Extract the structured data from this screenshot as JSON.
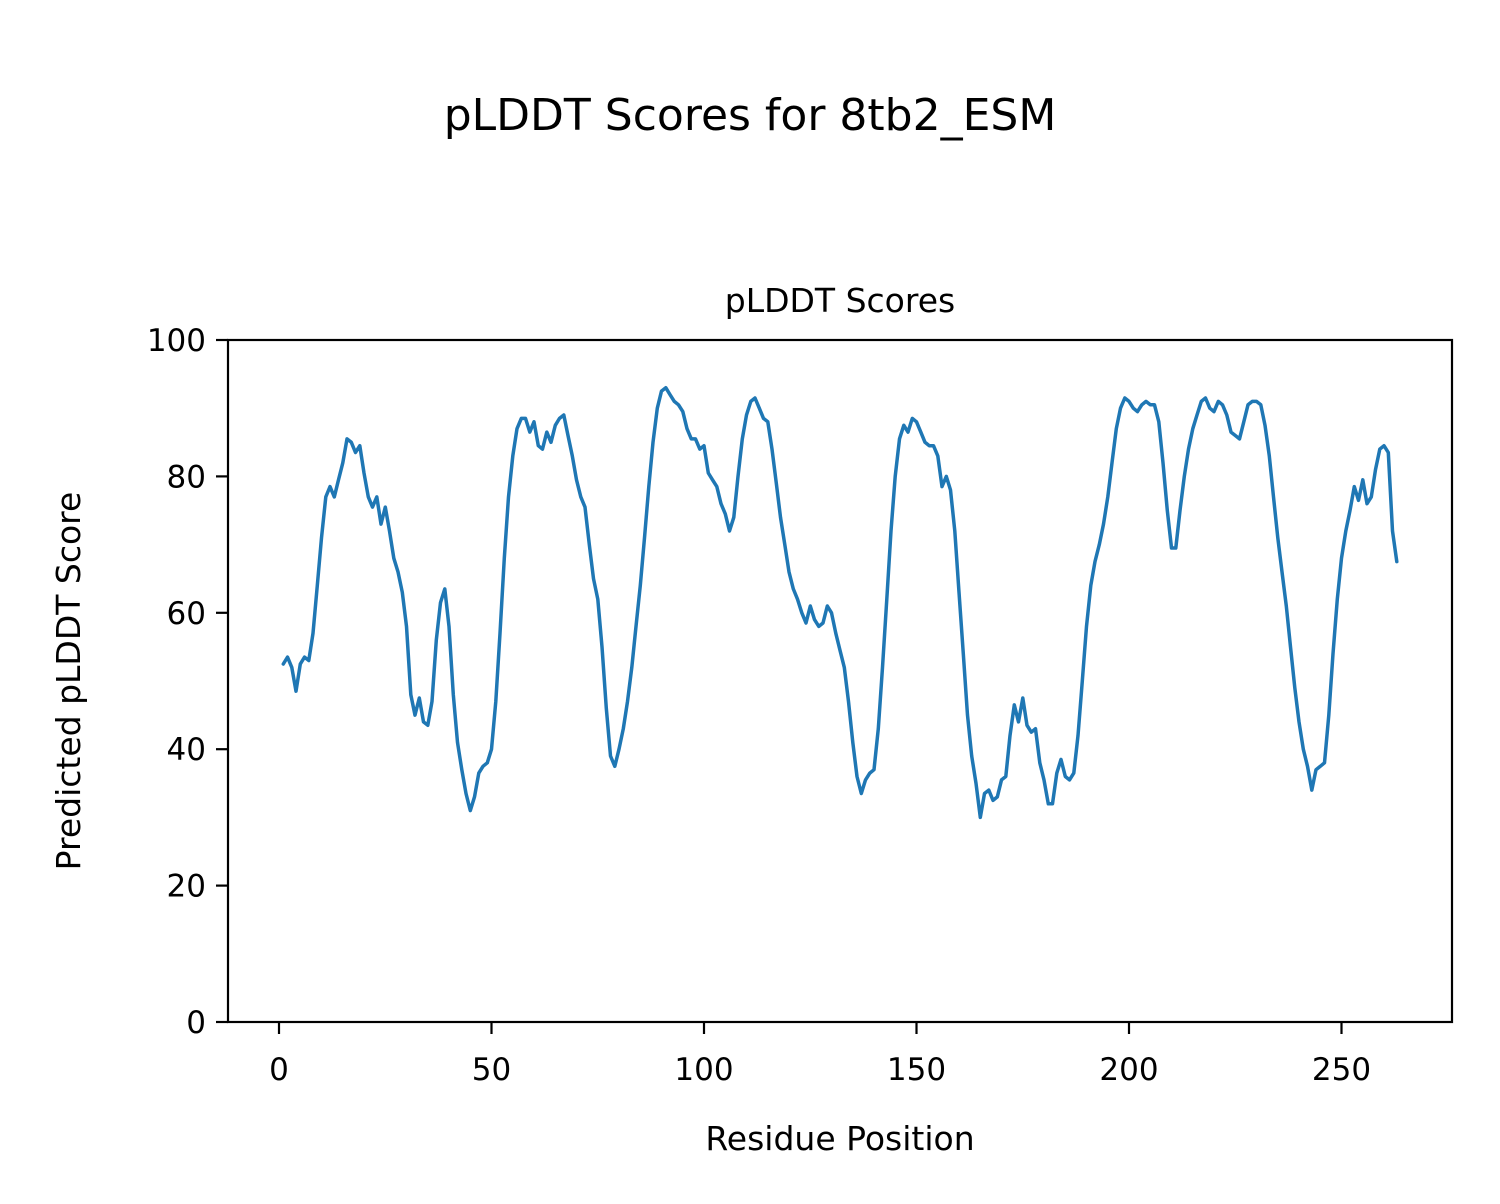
{
  "figure": {
    "suptitle": "pLDDT Scores for 8tb2_ESM",
    "background_color": "#ffffff"
  },
  "chart_data": {
    "type": "line",
    "title": "pLDDT Scores",
    "xlabel": "Residue Position",
    "ylabel": "Predicted pLDDT Score",
    "line_color": "#1f77b4",
    "line_width": 3.5,
    "axes_color": "#000000",
    "grid": false,
    "legend": "none",
    "xlim": [
      -12,
      276
    ],
    "ylim": [
      0,
      100
    ],
    "xticks": [
      0,
      50,
      100,
      150,
      200,
      250
    ],
    "yticks": [
      0,
      20,
      40,
      60,
      80,
      100
    ],
    "x_start": 1,
    "x_step": 1,
    "n_points": 263,
    "y": [
      52.5,
      53.5,
      52,
      48.5,
      52.5,
      53.5,
      53,
      57,
      64,
      71,
      77,
      78.5,
      77,
      79.5,
      82,
      85.5,
      85,
      83.5,
      84.5,
      80.5,
      77,
      75.5,
      77,
      73,
      75.5,
      72,
      68,
      66,
      63,
      58,
      48,
      45,
      47.5,
      44,
      43.5,
      47,
      56,
      61.5,
      63.5,
      58,
      48,
      41,
      37,
      33.5,
      31,
      33,
      36.5,
      37.5,
      38,
      40,
      47,
      57,
      68,
      77,
      83,
      87,
      88.5,
      88.5,
      86.5,
      88,
      84.5,
      84,
      86.5,
      85,
      87.5,
      88.5,
      89,
      86,
      83,
      79.5,
      77,
      75.5,
      70,
      65,
      62,
      55,
      46,
      39,
      37.5,
      40,
      43,
      47,
      52,
      58,
      64,
      71,
      78.5,
      85,
      90,
      92.5,
      93,
      92,
      91,
      90.5,
      89.5,
      87,
      85.5,
      85.5,
      84,
      84.5,
      80.5,
      79.5,
      78.5,
      76,
      74.5,
      72,
      74,
      80,
      85.5,
      89,
      91,
      91.5,
      90,
      88.5,
      88,
      84,
      79,
      74,
      70,
      66,
      63.5,
      62,
      60,
      58.5,
      61,
      59,
      58,
      58.5,
      61,
      60,
      57,
      54.5,
      52,
      47,
      41,
      36,
      33.5,
      35.5,
      36.5,
      37,
      43,
      52,
      62,
      72,
      80,
      85.5,
      87.5,
      86.5,
      88.5,
      88,
      86.5,
      85,
      84.5,
      84.5,
      83,
      78.5,
      80,
      78,
      72,
      63,
      54,
      45,
      39,
      35,
      30,
      33.5,
      34,
      32.5,
      33,
      35.5,
      36,
      42,
      46.5,
      44,
      47.5,
      43.5,
      42.5,
      43,
      38,
      35.5,
      32,
      32,
      36.5,
      38.5,
      36,
      35.5,
      36.5,
      42,
      50,
      58,
      64,
      67.5,
      70,
      73,
      77,
      82,
      87,
      90,
      91.5,
      91,
      90,
      89.5,
      90.5,
      91,
      90.5,
      90.5,
      88,
      82,
      75,
      69.5,
      69.5,
      75,
      80,
      84,
      87,
      89,
      91,
      91.5,
      90,
      89.5,
      91,
      90.5,
      89,
      86.5,
      86,
      85.5,
      88,
      90.5,
      91,
      91,
      90.5,
      87.5,
      83,
      77,
      71,
      66,
      61,
      55,
      49,
      44,
      40,
      37.5,
      34,
      37,
      37.5,
      38,
      45,
      54,
      62,
      68,
      72,
      75,
      78.5,
      76.5,
      79.5,
      76,
      77,
      81,
      84,
      84.5,
      83.5,
      72,
      67.5
    ]
  }
}
